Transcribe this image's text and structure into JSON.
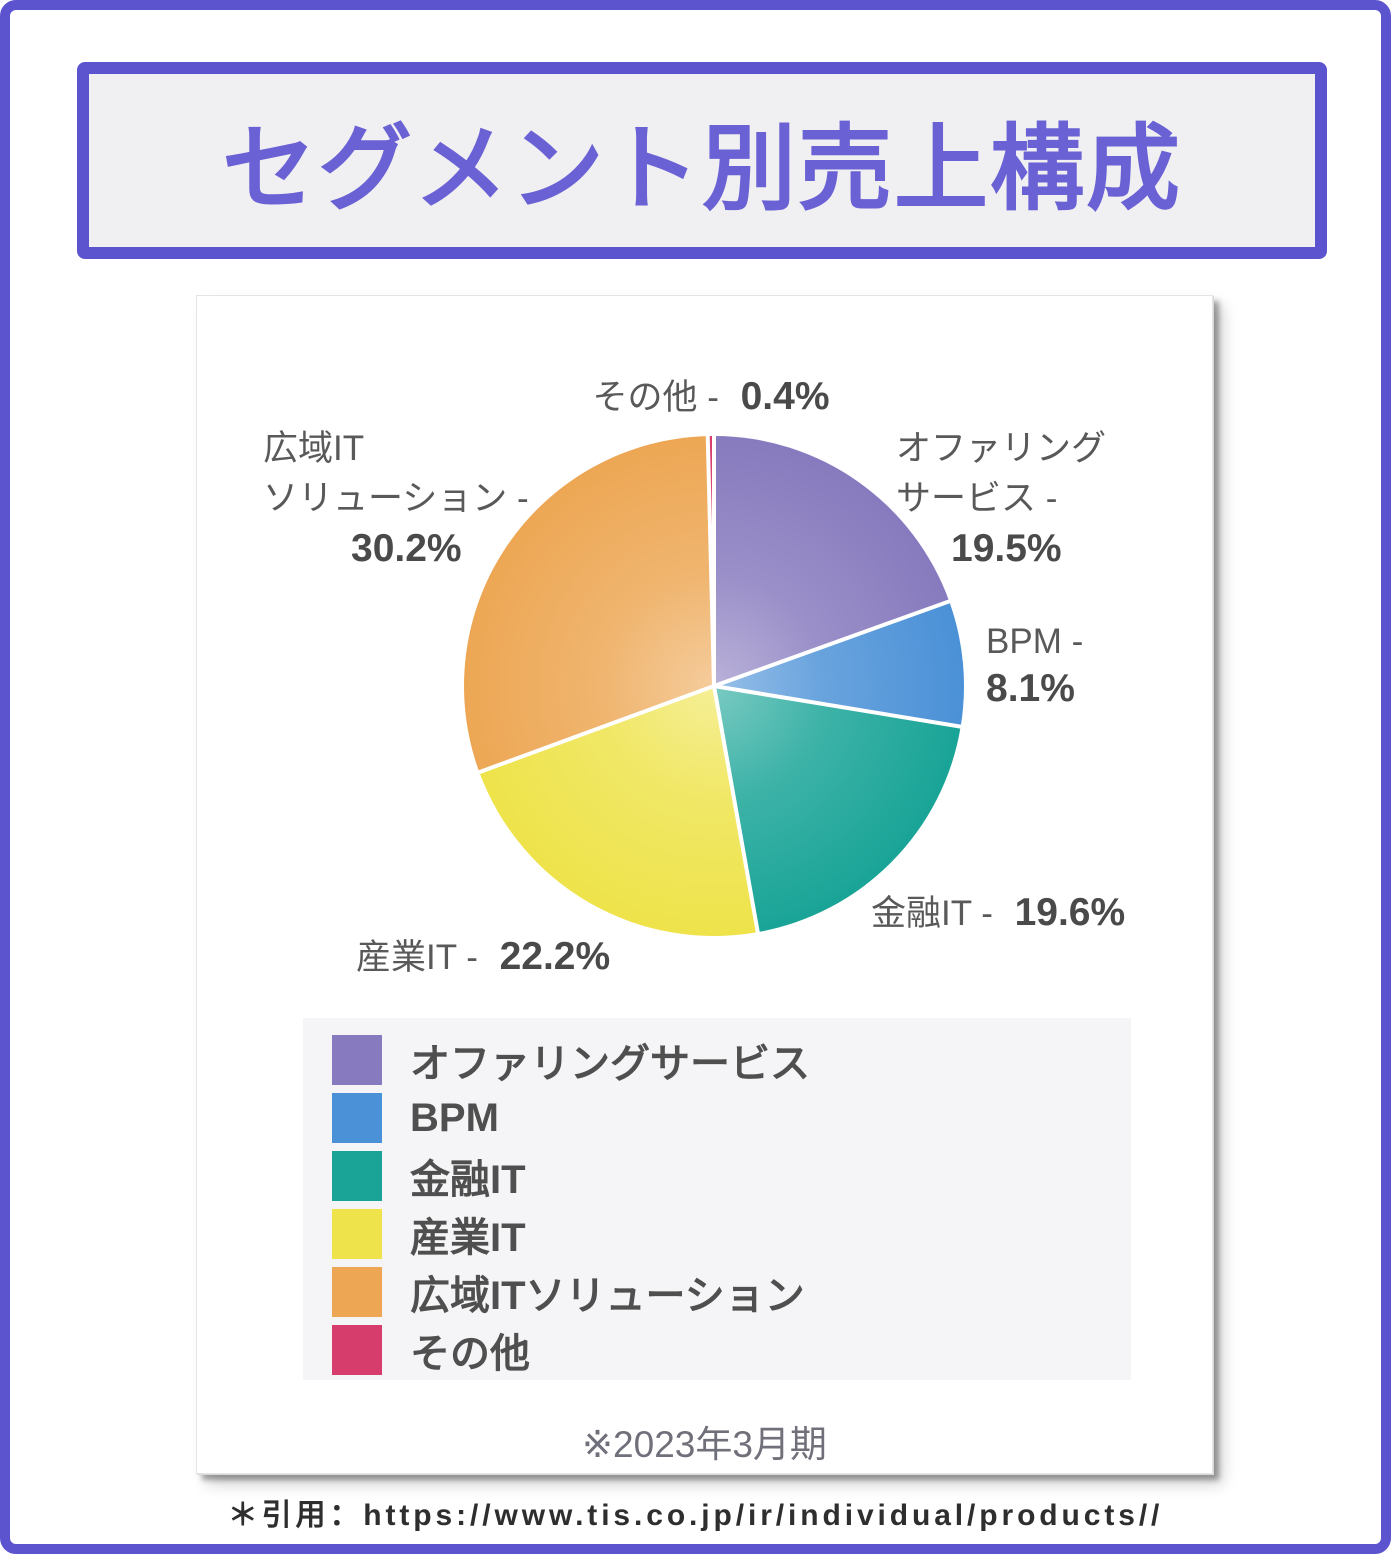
{
  "page": {
    "title": "セグメント別売上構成",
    "citation": "＊引用：https://www.tis.co.jp/ir/individual/products//"
  },
  "theme": {
    "accent_purple": "#5C53CE",
    "title_text": "#6A61D4",
    "title_box_bg": "#F0EFF2",
    "legend_bg": "#F5F4F6",
    "label_text": "#595959",
    "percent_text": "#4A4A4A"
  },
  "chart_data": {
    "type": "pie",
    "title": "セグメント別売上構成",
    "note": "※2023年3月期",
    "unit": "%",
    "start_angle": "top",
    "direction": "clockwise",
    "legend_position": "bottom",
    "separator_color": "#FFFFFF",
    "segments": [
      {
        "label": "オファリングサービス",
        "value": 19.5,
        "color": "#877ABE",
        "callout": {
          "lines": [
            "オファリング",
            "サービス -"
          ],
          "pct": "19.5%"
        }
      },
      {
        "label": "BPM",
        "value": 8.1,
        "color": "#4B91D7",
        "callout": {
          "lines": [
            "BPM -"
          ],
          "pct": "8.1%"
        }
      },
      {
        "label": "金融IT",
        "value": 19.6,
        "color": "#19A497",
        "callout": {
          "lines": [
            "金融IT -"
          ],
          "pct": "19.6%"
        }
      },
      {
        "label": "産業IT",
        "value": 22.2,
        "color": "#EEE34A",
        "callout": {
          "lines": [
            "産業IT -"
          ],
          "pct": "22.2%"
        }
      },
      {
        "label": "広域ITソリューション",
        "value": 30.2,
        "color": "#EDA754",
        "callout": {
          "lines": [
            "広域IT",
            "ソリューション -"
          ],
          "pct": "30.2%"
        }
      },
      {
        "label": "その他",
        "value": 0.4,
        "color": "#D63D6D",
        "callout": {
          "lines": [
            "その他 -"
          ],
          "pct": "0.4%"
        }
      }
    ]
  }
}
